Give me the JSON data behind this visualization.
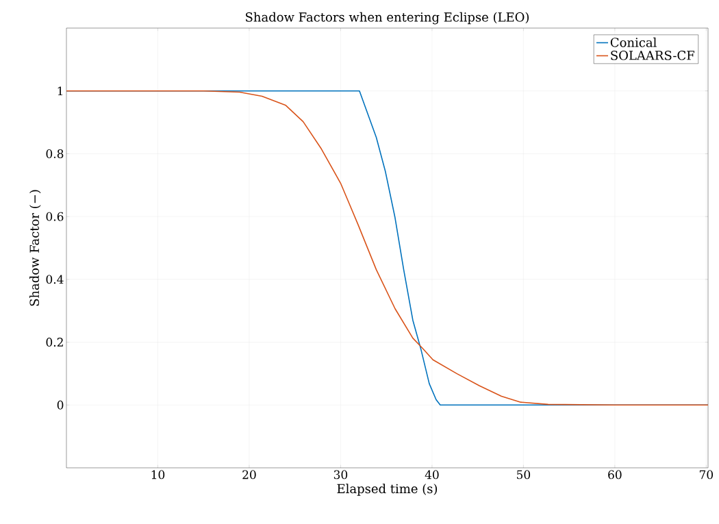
{
  "chart_data": {
    "type": "line",
    "title": "Shadow Factors when entering Eclipse (LEO)",
    "xlabel": "Elapsed time (s)",
    "ylabel": "Shadow Factor (−)",
    "xlim": [
      0,
      70.2
    ],
    "ylim": [
      -0.2,
      1.2
    ],
    "xticks": [
      10,
      20,
      30,
      40,
      50,
      60,
      70
    ],
    "yticks": [
      0,
      0.2,
      0.4,
      0.6,
      0.8,
      1
    ],
    "grid": true,
    "legend": "top right",
    "marker": "none",
    "line_style": "solid",
    "series": [
      {
        "name": "Conical",
        "color": "#0072bd",
        "x": [
          0,
          32.06,
          33.9,
          34.9,
          35.95,
          36.9,
          37.9,
          38.8,
          39.7,
          40.45,
          40.9,
          70.2
        ],
        "values": [
          1,
          1,
          0.852,
          0.743,
          0.597,
          0.431,
          0.27,
          0.176,
          0.068,
          0.017,
          0,
          0
        ]
      },
      {
        "name": "SOLAARS-CF",
        "color": "#d95319",
        "x": [
          0,
          15,
          18.95,
          21.4,
          24.0,
          25.9,
          27.9,
          30.0,
          31.9,
          33.9,
          35.95,
          37.9,
          38.95,
          40.1,
          42.7,
          45.2,
          47.6,
          49.7,
          52.7,
          60,
          70.2
        ],
        "values": [
          1,
          1,
          0.996,
          0.983,
          0.954,
          0.902,
          0.815,
          0.706,
          0.575,
          0.431,
          0.307,
          0.213,
          0.181,
          0.144,
          0.1,
          0.061,
          0.028,
          0.009,
          0.002,
          0,
          0
        ]
      }
    ]
  }
}
